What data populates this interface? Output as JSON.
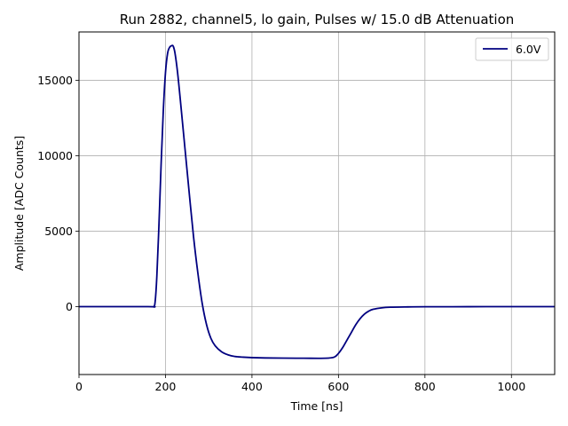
{
  "chart_data": {
    "type": "line",
    "title": "Run 2882, channel5, lo gain, Pulses w/ 15.0 dB Attenuation",
    "xlabel": "Time [ns]",
    "ylabel": "Amplitude [ADC Counts]",
    "xlim": [
      0,
      1100
    ],
    "ylim": [
      -4500,
      18200
    ],
    "xticks": [
      0,
      200,
      400,
      600,
      800,
      1000
    ],
    "yticks": [
      0,
      5000,
      10000,
      15000
    ],
    "grid": true,
    "legend_position": "top-right",
    "series": [
      {
        "name": "6.0V",
        "color": "#000080",
        "x": [
          0,
          160,
          172,
          176,
          180,
          185,
          190,
          195,
          200,
          205,
          210,
          215,
          218,
          222,
          228,
          235,
          245,
          255,
          265,
          275,
          285,
          295,
          305,
          315,
          330,
          345,
          360,
          380,
          400,
          430,
          470,
          520,
          570,
          590,
          600,
          610,
          620,
          630,
          640,
          650,
          660,
          670,
          680,
          700,
          720,
          760,
          800,
          900,
          1000,
          1100
        ],
        "y": [
          0,
          0,
          0,
          300,
          2000,
          5500,
          9500,
          13000,
          15500,
          16800,
          17200,
          17300,
          17250,
          16800,
          15500,
          13500,
          10500,
          7500,
          4600,
          2200,
          200,
          -1200,
          -2100,
          -2600,
          -3000,
          -3200,
          -3300,
          -3350,
          -3380,
          -3400,
          -3410,
          -3420,
          -3420,
          -3350,
          -3100,
          -2700,
          -2200,
          -1700,
          -1200,
          -800,
          -500,
          -300,
          -180,
          -80,
          -40,
          -20,
          -10,
          -5,
          0,
          0
        ]
      }
    ]
  }
}
